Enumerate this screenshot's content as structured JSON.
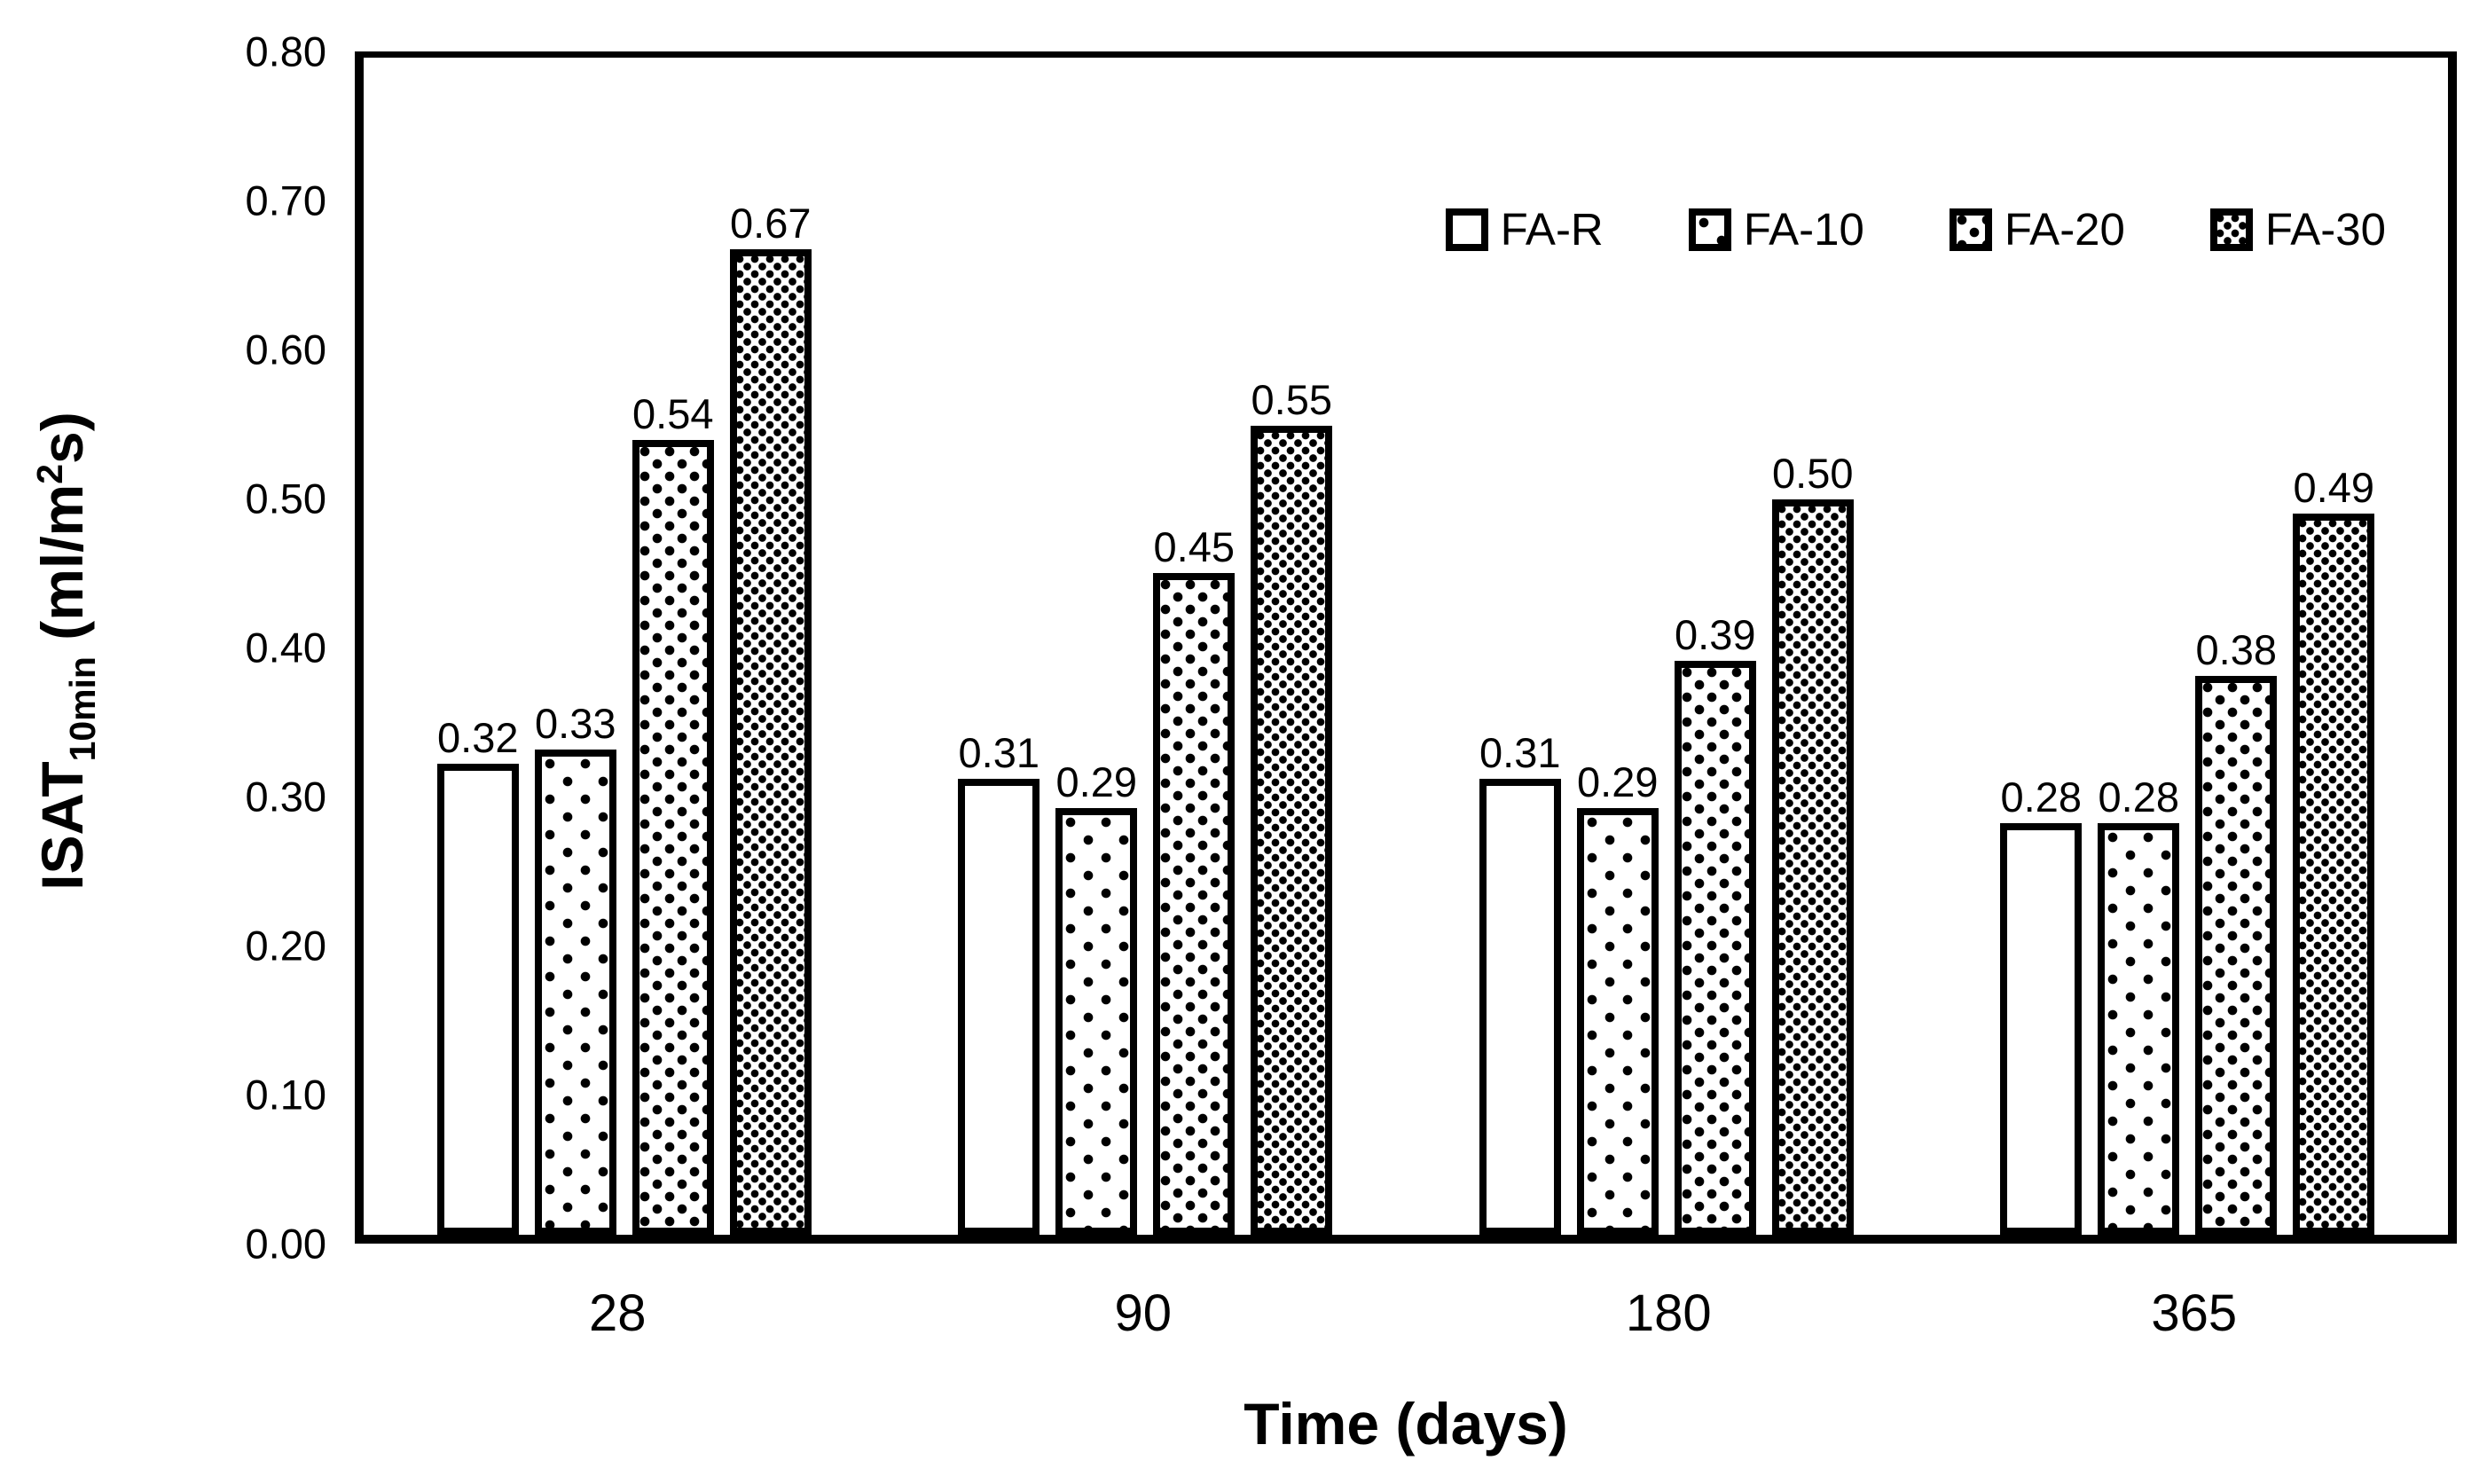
{
  "figure": {
    "background_color": "#ffffff",
    "ink_color": "#000000"
  },
  "chart_data": {
    "type": "bar",
    "title": "",
    "categories": [
      "28",
      "90",
      "180",
      "365"
    ],
    "series": [
      {
        "name": "FA-R",
        "pattern": "plain",
        "values": [
          0.32,
          0.31,
          0.31,
          0.28
        ],
        "labels": [
          "0.32",
          "0.31",
          "0.31",
          "0.28"
        ]
      },
      {
        "name": "FA-10",
        "pattern": "dots-sparse",
        "values": [
          0.33,
          0.29,
          0.29,
          0.28
        ],
        "labels": [
          "0.33",
          "0.29",
          "0.29",
          "0.28"
        ]
      },
      {
        "name": "FA-20",
        "pattern": "dots-medium",
        "values": [
          0.54,
          0.45,
          0.39,
          0.38
        ],
        "labels": [
          "0.54",
          "0.45",
          "0.39",
          "0.38"
        ]
      },
      {
        "name": "FA-30",
        "pattern": "dots-dense",
        "values": [
          0.67,
          0.55,
          0.5,
          0.49
        ],
        "labels": [
          "0.67",
          "0.55",
          "0.50",
          "0.49"
        ]
      }
    ],
    "xlabel": "Time (days)",
    "ylabel": {
      "main": "ISAT",
      "sub": "10min",
      "unit_pre": " (ml/m",
      "unit_sup": "2",
      "unit_post": "s)"
    },
    "ylim": [
      0.0,
      0.8
    ],
    "yticks": [
      "0.00",
      "0.10",
      "0.20",
      "0.30",
      "0.40",
      "0.50",
      "0.60",
      "0.70",
      "0.80"
    ],
    "grid": false,
    "legend_position": "top-right-inside",
    "bar_edge_color": "#000000",
    "bar_fill_color": "#ffffff"
  }
}
